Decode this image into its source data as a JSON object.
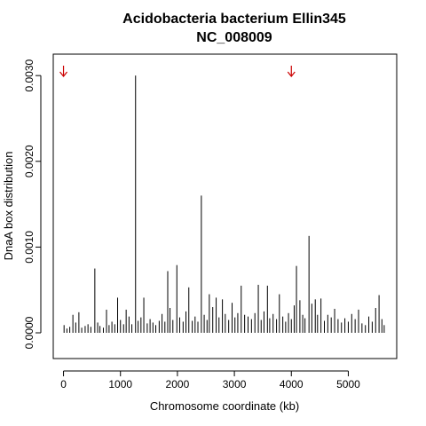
{
  "chart_data": {
    "type": "bar",
    "title": "Acidobacteria bacterium Ellin345",
    "subtitle": "NC_008009",
    "xlabel": "Chromosome coordinate (kb)",
    "ylabel": "DnaA box distribution",
    "xlim": [
      -180,
      5850
    ],
    "ylim": [
      -0.0003,
      0.00325
    ],
    "x_ticks": [
      0,
      1000,
      2000,
      3000,
      4000,
      5000
    ],
    "x_tick_labels": [
      "0",
      "1000",
      "2000",
      "3000",
      "4000",
      "5000"
    ],
    "y_ticks": [
      0,
      0.001,
      0.002,
      0.003
    ],
    "y_tick_labels": [
      "0.0000",
      "0.0010",
      "0.0020",
      "0.0030"
    ],
    "grid": false,
    "legend": "none",
    "bar_color": "#000000",
    "marker_color": "#cc0000",
    "markers": [
      {
        "x": 0,
        "label": "↓"
      },
      {
        "x": 4000,
        "label": "↓"
      }
    ],
    "x": [
      10,
      60,
      110,
      165,
      215,
      270,
      320,
      380,
      430,
      480,
      550,
      600,
      640,
      700,
      755,
      800,
      850,
      900,
      950,
      1000,
      1055,
      1100,
      1150,
      1200,
      1265,
      1310,
      1360,
      1410,
      1470,
      1520,
      1570,
      1620,
      1680,
      1730,
      1780,
      1830,
      1870,
      1920,
      1990,
      2040,
      2100,
      2150,
      2200,
      2260,
      2310,
      2360,
      2420,
      2470,
      2520,
      2560,
      2620,
      2680,
      2730,
      2790,
      2840,
      2900,
      2960,
      3010,
      3060,
      3120,
      3180,
      3240,
      3300,
      3360,
      3420,
      3470,
      3520,
      3580,
      3620,
      3680,
      3740,
      3790,
      3850,
      3900,
      3950,
      4000,
      4050,
      4090,
      4150,
      4200,
      4240,
      4310,
      4360,
      4420,
      4460,
      4520,
      4580,
      4640,
      4700,
      4760,
      4820,
      4880,
      4940,
      5000,
      5060,
      5120,
      5180,
      5240,
      5300,
      5360,
      5420,
      5480,
      5540,
      5590,
      5630
    ],
    "values": [
      9e-05,
      5e-05,
      7e-05,
      0.00021,
      0.00012,
      0.00024,
      6e-05,
      8e-05,
      0.0001,
      7e-05,
      0.00075,
      0.00012,
      8e-05,
      6e-05,
      0.00027,
      9e-05,
      0.00013,
      0.0001,
      0.00041,
      0.00015,
      0.0001,
      0.00027,
      0.00019,
      0.0001,
      0.003,
      0.00014,
      0.00018,
      0.00041,
      0.00011,
      0.00016,
      0.00012,
      9e-05,
      0.00014,
      0.00022,
      0.00013,
      0.00072,
      0.00029,
      0.00015,
      0.00079,
      0.00018,
      0.00013,
      0.00025,
      0.00053,
      0.00014,
      0.00019,
      0.00013,
      0.0016,
      0.00021,
      0.00015,
      0.00045,
      0.0003,
      0.00041,
      0.00018,
      0.00039,
      0.00022,
      0.00015,
      0.00035,
      0.00018,
      0.00023,
      0.00055,
      0.00021,
      0.00019,
      0.00016,
      0.00023,
      0.00056,
      0.00015,
      0.00025,
      0.00055,
      0.00017,
      0.00022,
      0.00016,
      0.00045,
      0.00019,
      0.00013,
      0.00023,
      0.00016,
      0.00032,
      0.00078,
      0.00038,
      0.00021,
      0.00017,
      0.00113,
      0.00034,
      0.00039,
      0.00021,
      0.0004,
      0.00014,
      0.00021,
      0.00018,
      0.00028,
      0.00016,
      0.00012,
      0.00017,
      0.00013,
      0.00022,
      0.00016,
      0.00027,
      0.00011,
      9e-05,
      0.00019,
      0.00013,
      0.00029,
      0.00044,
      0.00016,
      9e-05
    ]
  }
}
